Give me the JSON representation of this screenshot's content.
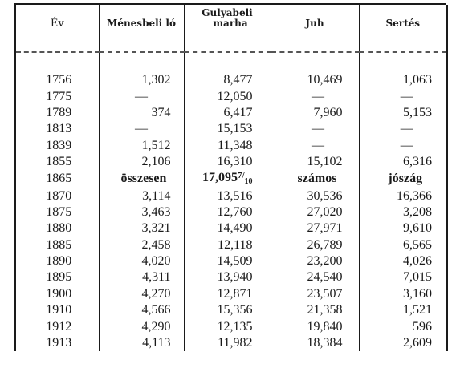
{
  "table": {
    "headers": {
      "year": "Év",
      "horse": "Ménesbeli ló",
      "cattle_line1": "Gulyabeli",
      "cattle_line2": "marha",
      "sheep": "Juh",
      "pig": "Sertés"
    },
    "rows": [
      {
        "year": "1756",
        "horse": "1,302",
        "cattle": "8,477",
        "sheep": "10,469",
        "pig": "1,063"
      },
      {
        "year": "1775",
        "horse": "—",
        "cattle": "12,050",
        "sheep": "—",
        "pig": "—"
      },
      {
        "year": "1789",
        "horse": "374",
        "cattle": "6,417",
        "sheep": "7,960",
        "pig": "5,153"
      },
      {
        "year": "1813",
        "horse": "—",
        "cattle": "15,153",
        "sheep": "—",
        "pig": "—"
      },
      {
        "year": "1839",
        "horse": "1,512",
        "cattle": "11,348",
        "sheep": "—",
        "pig": "—"
      },
      {
        "year": "1855",
        "horse": "2,106",
        "cattle": "16,310",
        "sheep": "15,102",
        "pig": "6,316"
      },
      {
        "year": "1865",
        "horse": "összesen",
        "cattle_main": "17,095",
        "cattle_num": "7",
        "cattle_den": "10",
        "sheep": "számos",
        "pig": "jószág",
        "bold": true
      },
      {
        "year": "1870",
        "horse": "3,114",
        "cattle": "13,516",
        "sheep": "30,536",
        "pig": "16,366"
      },
      {
        "year": "1875",
        "horse": "3,463",
        "cattle": "12,760",
        "sheep": "27,020",
        "pig": "3,208"
      },
      {
        "year": "1880",
        "horse": "3,321",
        "cattle": "14,490",
        "sheep": "27,971",
        "pig": "9,610"
      },
      {
        "year": "1885",
        "horse": "2,458",
        "cattle": "12,118",
        "sheep": "26,789",
        "pig": "6,565"
      },
      {
        "year": "1890",
        "horse": "4,020",
        "cattle": "14,509",
        "sheep": "23,200",
        "pig": "4,026"
      },
      {
        "year": "1895",
        "horse": "4,311",
        "cattle": "13,940",
        "sheep": "24,540",
        "pig": "7,015"
      },
      {
        "year": "1900",
        "horse": "4,270",
        "cattle": "12,871",
        "sheep": "23,507",
        "pig": "3,160"
      },
      {
        "year": "1910",
        "horse": "4,566",
        "cattle": "15,356",
        "sheep": "21,358",
        "pig": "1,521"
      },
      {
        "year": "1912",
        "horse": "4,290",
        "cattle": "12,135",
        "sheep": "19,840",
        "pig": "596"
      },
      {
        "year": "1913",
        "horse": "4,113",
        "cattle": "11,982",
        "sheep": "18,384",
        "pig": "2,609"
      }
    ]
  }
}
